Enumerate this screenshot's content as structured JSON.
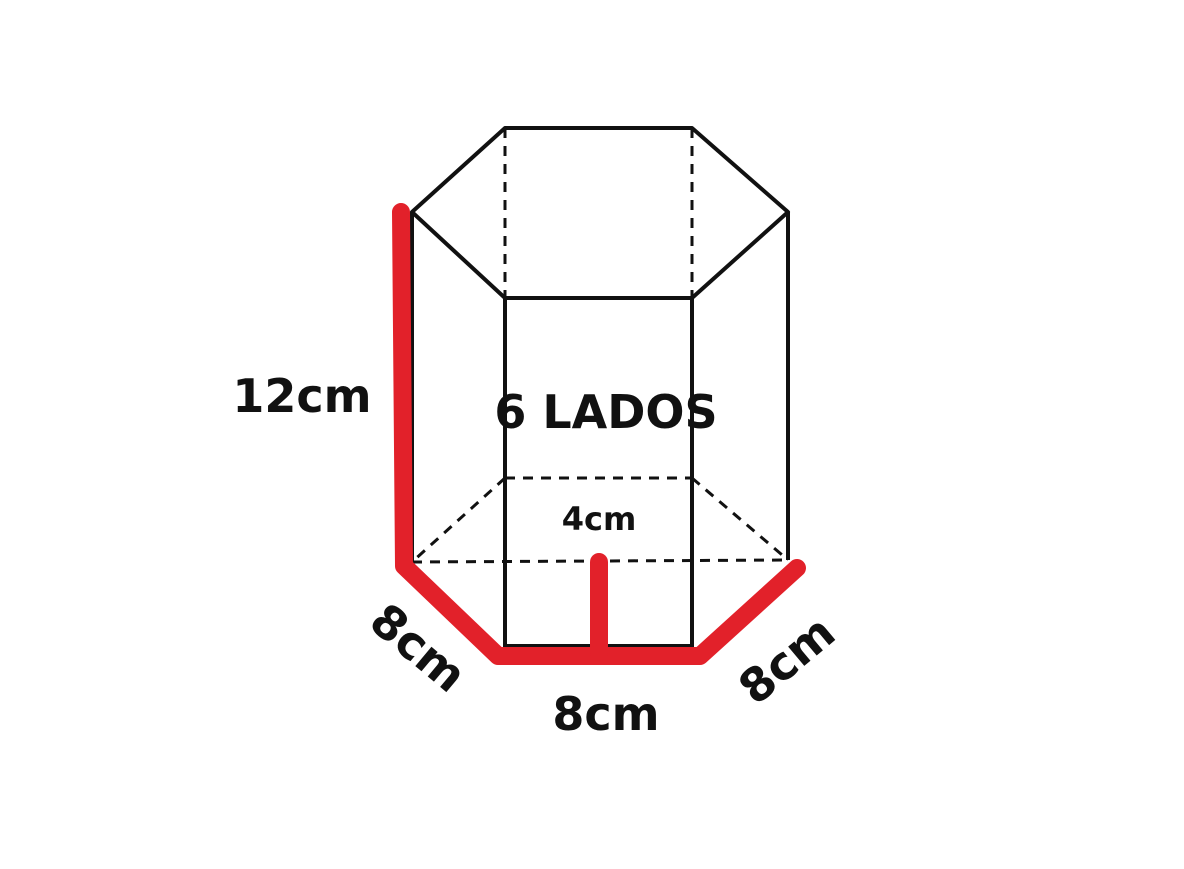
{
  "colors": {
    "edge": "#111111",
    "highlight": "#e2212a",
    "background": "#ffffff"
  },
  "labels": {
    "height": "12cm",
    "center_title": "6 LADOS",
    "apothem": "4cm",
    "side_left": "8cm",
    "side_bottom": "8cm",
    "side_right": "8cm"
  }
}
